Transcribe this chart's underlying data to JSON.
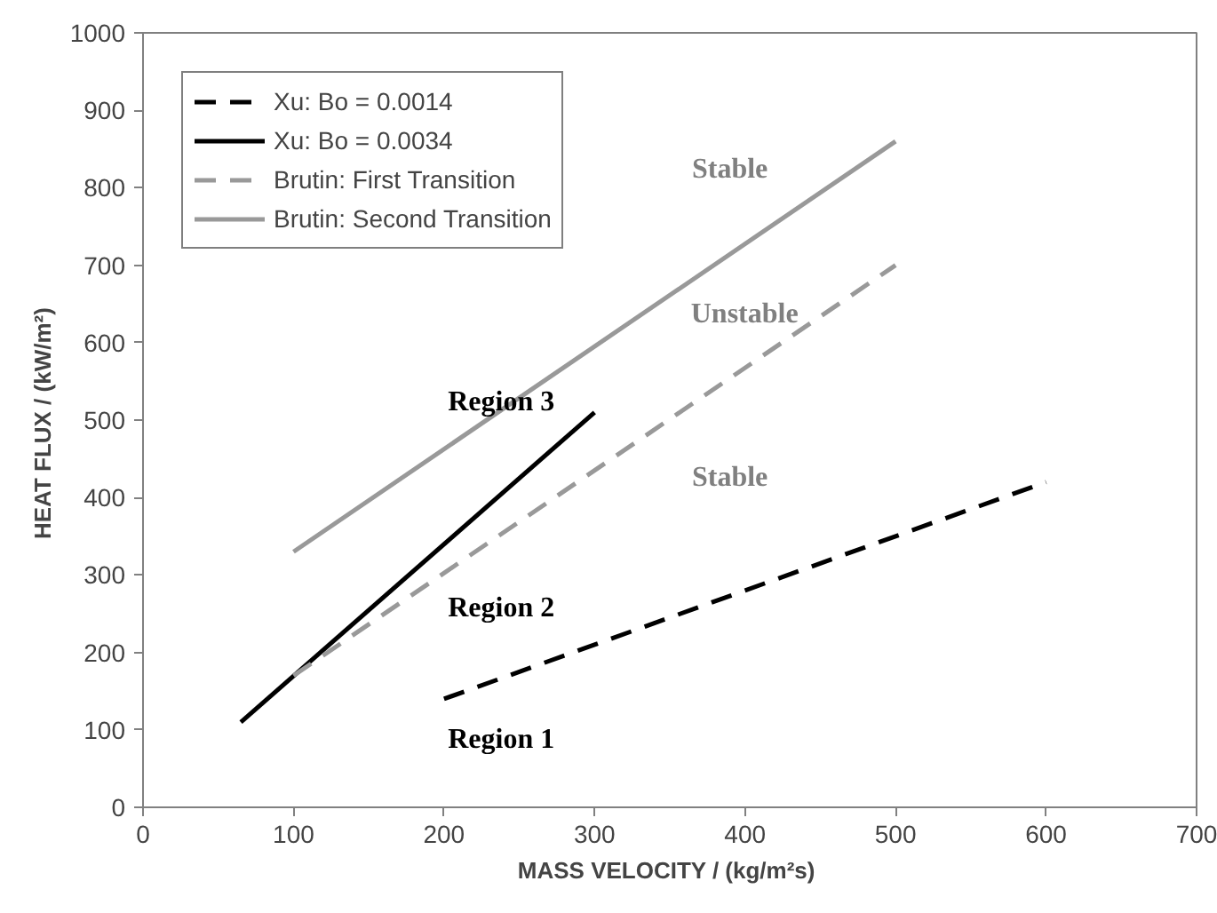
{
  "chart_data": {
    "type": "line",
    "xlabel": "MASS VELOCITY /  (kg/m²s)",
    "ylabel": "HEAT FLUX /  (kW/m²)",
    "xlim": [
      0,
      700
    ],
    "ylim": [
      0,
      1000
    ],
    "xticks": [
      0,
      100,
      200,
      300,
      400,
      500,
      600,
      700
    ],
    "yticks": [
      0,
      100,
      200,
      300,
      400,
      500,
      600,
      700,
      800,
      900,
      1000
    ],
    "grid": false,
    "legend": "top left",
    "marker": "none",
    "series": [
      {
        "name": "Xu: Bo = 0.0014",
        "color": "#000000",
        "line_style": "dashed",
        "x": [
          200,
          300,
          400,
          500,
          600
        ],
        "values": [
          140,
          210,
          280,
          350,
          420
        ]
      },
      {
        "name": "Xu: Bo = 0.0034",
        "color": "#000000",
        "line_style": "solid",
        "x": [
          65,
          300
        ],
        "values": [
          110,
          510
        ]
      },
      {
        "name": "Brutin: First Transition",
        "color": "#999999",
        "line_style": "dashed",
        "x": [
          100,
          500
        ],
        "values": [
          170,
          700
        ]
      },
      {
        "name": "Brutin: Second Transition",
        "color": "#999999",
        "line_style": "solid",
        "x": [
          100,
          500
        ],
        "values": [
          330,
          860
        ]
      }
    ],
    "annotations": [
      "Stable",
      "Unstable",
      "Stable",
      "Region 3",
      "Region 2",
      "Region 1"
    ]
  }
}
